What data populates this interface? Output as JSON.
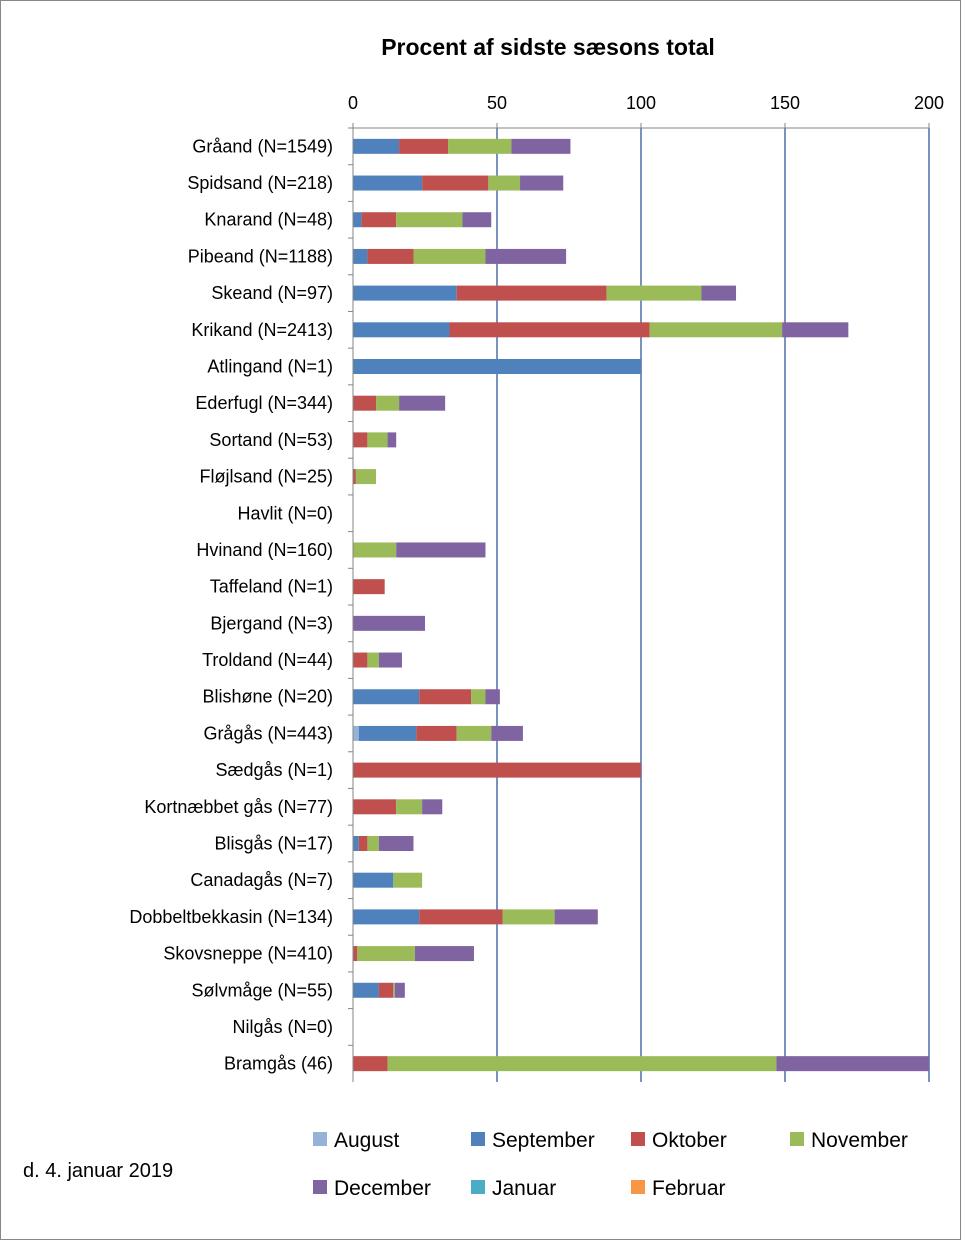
{
  "chart_data": {
    "type": "bar",
    "orientation": "horizontal",
    "stacked": true,
    "title": "Procent af sidste sæsons total",
    "xlim": [
      0,
      200
    ],
    "xticks": [
      0,
      50,
      100,
      150,
      200
    ],
    "grid": "vertical major gridlines",
    "legend_position": "bottom",
    "categories": [
      "Gråand (N=1549)",
      "Spidsand (N=218)",
      "Knarand (N=48)",
      "Pibeand (N=1188)",
      "Skeand (N=97)",
      "Krikand (N=2413)",
      "Atlingand (N=1)",
      "Ederfugl (N=344)",
      "Sortand (N=53)",
      "Fløjlsand (N=25)",
      "Havlit (N=0)",
      "Hvinand (N=160)",
      "Taffeland (N=1)",
      "Bjergand (N=3)",
      "Troldand (N=44)",
      "Blishøne (N=20)",
      "Grågås (N=443)",
      "Sædgås (N=1)",
      "Kortnæbbet gås (N=77)",
      "Blisgås (N=17)",
      "Canadagås (N=7)",
      "Dobbeltbekkasin (N=134)",
      "Skovsneppe (N=410)",
      "Sølvmåge (N=55)",
      "Nilgås (N=0)",
      "Bramgås (46)"
    ],
    "series": [
      {
        "name": "August",
        "color": "#95B3D7",
        "values": [
          0,
          0,
          0,
          0,
          0,
          0,
          0,
          0,
          0,
          0,
          0,
          0,
          0,
          0,
          0,
          0,
          2,
          0,
          0,
          0,
          0,
          0,
          0,
          0,
          0,
          0
        ]
      },
      {
        "name": "September",
        "color": "#4F81BD",
        "values": [
          16,
          24,
          3,
          5,
          36,
          33.5,
          100,
          0,
          0,
          0,
          0,
          0,
          0,
          0,
          0,
          23,
          20,
          0,
          0,
          2,
          14,
          23,
          0,
          9,
          0,
          0
        ]
      },
      {
        "name": "Oktober",
        "color": "#C0504D",
        "values": [
          17,
          23,
          12,
          16,
          52,
          69.5,
          0,
          8,
          5,
          1,
          0,
          0,
          11,
          0,
          5,
          18,
          14,
          100,
          15,
          3,
          0,
          29,
          1.5,
          5,
          0,
          12
        ]
      },
      {
        "name": "November",
        "color": "#9BBB59",
        "values": [
          22,
          11,
          23,
          25,
          33,
          46,
          0,
          8,
          7,
          7,
          0,
          15,
          0,
          0,
          4,
          5,
          12,
          0,
          9,
          4,
          10,
          18,
          20,
          0.5,
          0,
          135
        ]
      },
      {
        "name": "December",
        "color": "#8064A2",
        "values": [
          20.5,
          15,
          10,
          28,
          12,
          23,
          0,
          16,
          3,
          0,
          0,
          31,
          0,
          25,
          8,
          5,
          11,
          0,
          7,
          12,
          0,
          15,
          20.5,
          3.5,
          0,
          53
        ]
      },
      {
        "name": "Januar",
        "color": "#4BACC6",
        "values": [
          0,
          0,
          0,
          0,
          0,
          0,
          0,
          0,
          0,
          0,
          0,
          0,
          0,
          0,
          0,
          0,
          0,
          0,
          0,
          0,
          0,
          0,
          0,
          0,
          0,
          0
        ]
      },
      {
        "name": "Februar",
        "color": "#F79646",
        "values": [
          0,
          0,
          0,
          0,
          0,
          0,
          0,
          0,
          0,
          0,
          0,
          0,
          0,
          0,
          0,
          0,
          0,
          0,
          0,
          0,
          0,
          0,
          0,
          0,
          0,
          0
        ]
      }
    ]
  },
  "footer": {
    "date_text": "d. 4. januar  2019"
  }
}
